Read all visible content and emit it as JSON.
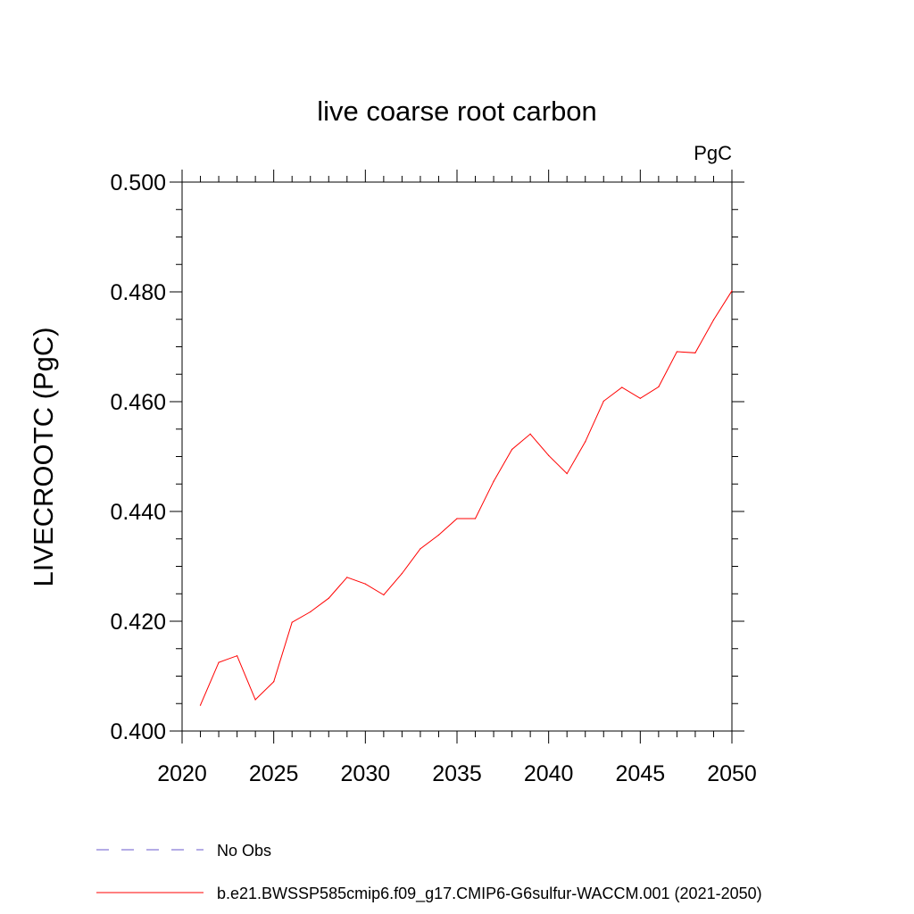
{
  "chart_data": {
    "type": "line",
    "title": "live coarse root carbon",
    "units": "PgC",
    "ylabel": "LIVECROOTC  (PgC)",
    "xlabel": "",
    "xlim": [
      2020,
      2050
    ],
    "ylim": [
      0.4,
      0.5
    ],
    "xticks": [
      2020,
      2025,
      2030,
      2035,
      2040,
      2045,
      2050
    ],
    "xtick_labels": [
      "2020",
      "2025",
      "2030",
      "2035",
      "2040",
      "2045",
      "2050"
    ],
    "yticks": [
      0.4,
      0.42,
      0.44,
      0.46,
      0.48,
      0.5
    ],
    "ytick_labels": [
      "0.400",
      "0.420",
      "0.440",
      "0.460",
      "0.480",
      "0.500"
    ],
    "grid": false,
    "legend_position": "bottom",
    "legend": [
      {
        "label": "No Obs",
        "color": "#6a5acd",
        "style": "dashed"
      },
      {
        "label": "b.e21.BWSSP585cmip6.f09_g17.CMIP6-G6sulfur-WACCM.001 (2021-2050)",
        "color": "#ff0000",
        "style": "solid"
      }
    ],
    "series": [
      {
        "color": "#ff0000",
        "x": [
          2021,
          2022,
          2023,
          2024,
          2025,
          2026,
          2027,
          2028,
          2029,
          2030,
          2031,
          2032,
          2033,
          2034,
          2035,
          2036,
          2037,
          2038,
          2039,
          2040,
          2041,
          2042,
          2043,
          2044,
          2045,
          2046,
          2047,
          2048,
          2049,
          2050
        ],
        "values": [
          0.4047,
          0.4125,
          0.4137,
          0.4057,
          0.409,
          0.4198,
          0.4217,
          0.4242,
          0.428,
          0.4268,
          0.4248,
          0.4287,
          0.4332,
          0.4357,
          0.4387,
          0.4387,
          0.4455,
          0.4513,
          0.4541,
          0.4502,
          0.4469,
          0.4527,
          0.4601,
          0.4626,
          0.4606,
          0.4627,
          0.4691,
          0.4689,
          0.4749,
          0.4802
        ]
      }
    ]
  }
}
